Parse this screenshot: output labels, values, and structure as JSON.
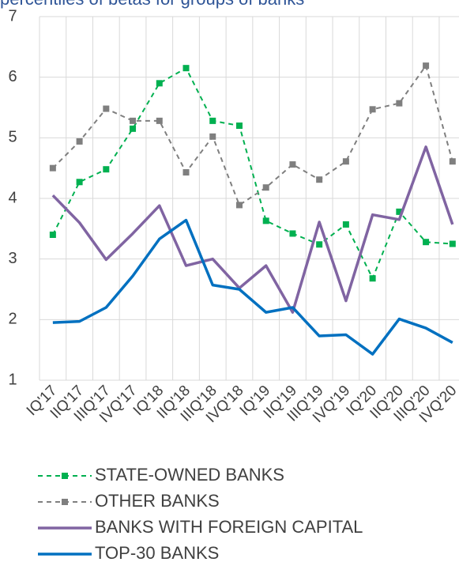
{
  "chart_data": {
    "type": "line",
    "title": "percentiles of betas for groups of banks",
    "categories": [
      "IQ'17",
      "IIQ'17",
      "IIIQ'17",
      "IVQ'17",
      "IQ'18",
      "IIQ'18",
      "IIIQ'18",
      "IVQ'18",
      "IQ'19",
      "IIQ'19",
      "IIIQ'19",
      "IVQ'19",
      "IQ'20",
      "IIQ'20",
      "IIIQ'20",
      "IVQ'20"
    ],
    "series": [
      {
        "name": "STATE-OWNED BANKS",
        "color": "#00b050",
        "dashed": true,
        "marker": "square",
        "values": [
          3.4,
          4.27,
          4.48,
          5.15,
          5.9,
          6.15,
          5.28,
          5.2,
          3.63,
          3.42,
          3.24,
          3.57,
          2.68,
          3.78,
          3.28,
          3.25
        ]
      },
      {
        "name": "OTHER BANKS",
        "color": "#7f7f7f",
        "dashed": true,
        "marker": "square",
        "values": [
          4.5,
          4.94,
          5.48,
          5.28,
          5.28,
          4.43,
          5.02,
          3.89,
          4.18,
          4.56,
          4.31,
          4.61,
          5.47,
          5.57,
          6.19,
          4.61
        ]
      },
      {
        "name": "BANKS WITH FOREIGN CAPITAL",
        "color": "#8064a2",
        "dashed": false,
        "marker": "none",
        "values": [
          4.05,
          3.6,
          2.99,
          3.42,
          3.88,
          2.89,
          3.0,
          2.52,
          2.89,
          2.12,
          3.61,
          2.31,
          3.73,
          3.65,
          4.85,
          3.57
        ]
      },
      {
        "name": "TOP-30 BANKS",
        "color": "#0070c0",
        "dashed": false,
        "marker": "none",
        "values": [
          1.95,
          1.97,
          2.2,
          2.72,
          3.33,
          3.64,
          2.57,
          2.5,
          2.12,
          2.2,
          1.73,
          1.75,
          1.43,
          2.01,
          1.86,
          1.62
        ]
      }
    ],
    "ylim": [
      1,
      7
    ],
    "yticks": [
      1,
      2,
      3,
      4,
      5,
      6,
      7
    ],
    "grid": true
  }
}
